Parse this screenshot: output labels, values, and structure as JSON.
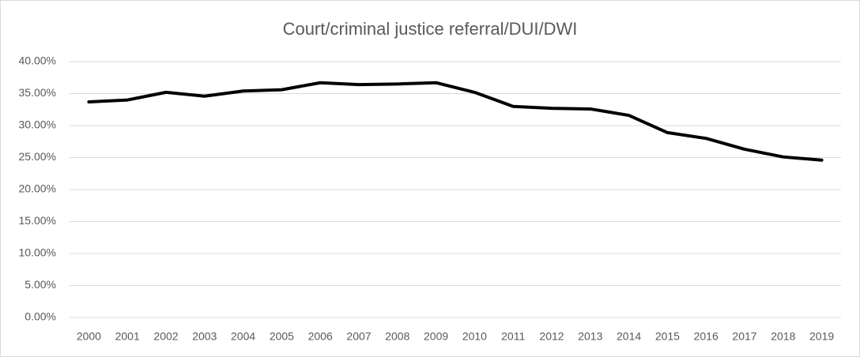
{
  "chart_data": {
    "type": "line",
    "title": "Court/criminal justice referral/DUI/DWI",
    "categories": [
      "2000",
      "2001",
      "2002",
      "2003",
      "2004",
      "2005",
      "2006",
      "2007",
      "2008",
      "2009",
      "2010",
      "2011",
      "2012",
      "2013",
      "2014",
      "2015",
      "2016",
      "2017",
      "2018",
      "2019"
    ],
    "values": [
      33.7,
      34.0,
      35.2,
      34.6,
      35.4,
      35.6,
      36.7,
      36.4,
      36.5,
      36.7,
      35.2,
      33.0,
      32.7,
      32.6,
      31.6,
      28.9,
      28.0,
      26.3,
      25.1,
      24.6
    ],
    "color": "#000000",
    "ylim": [
      0,
      40
    ],
    "yticks": [
      {
        "value": 0,
        "label": "0.00%"
      },
      {
        "value": 5,
        "label": "5.00%"
      },
      {
        "value": 10,
        "label": "10.00%"
      },
      {
        "value": 15,
        "label": "15.00%"
      },
      {
        "value": 20,
        "label": "20.00%"
      },
      {
        "value": 25,
        "label": "25.00%"
      },
      {
        "value": 30,
        "label": "30.00%"
      },
      {
        "value": 35,
        "label": "35.00%"
      },
      {
        "value": 40,
        "label": "40.00%"
      }
    ],
    "grid": true
  }
}
